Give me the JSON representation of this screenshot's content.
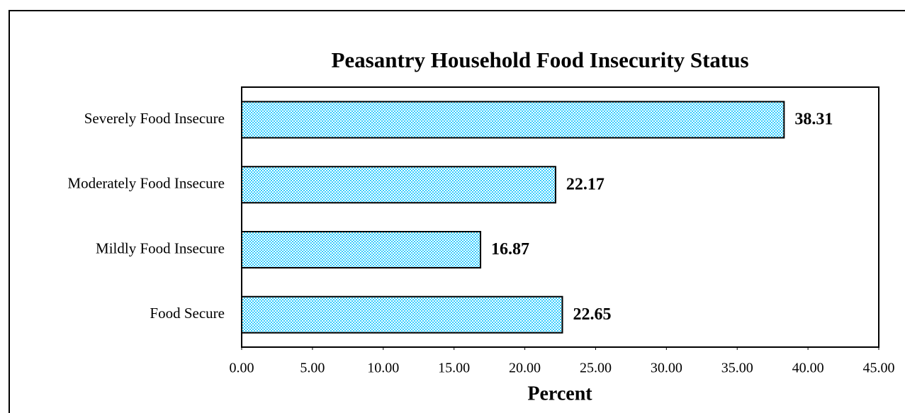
{
  "chart_data": {
    "type": "bar",
    "orientation": "horizontal",
    "title": "Peasantry Household Food Insecurity Status",
    "x_label": "Percent",
    "categories": [
      "Severely Food Insecure",
      "Moderately Food Insecure",
      "Mildly Food Insecure",
      "Food Secure"
    ],
    "values": [
      38.31,
      22.17,
      16.87,
      22.65
    ],
    "color": "#33ccff",
    "xlim": [
      0,
      45
    ],
    "xticks": [
      {
        "value": 0,
        "label": "0.00"
      },
      {
        "value": 5,
        "label": "5.00"
      },
      {
        "value": 10,
        "label": "10.00"
      },
      {
        "value": 15,
        "label": "15.00"
      },
      {
        "value": 20,
        "label": "20.00"
      },
      {
        "value": 25,
        "label": "25.00"
      },
      {
        "value": 30,
        "label": "30.00"
      },
      {
        "value": 35,
        "label": "35.00"
      },
      {
        "value": 40,
        "label": "40.00"
      },
      {
        "value": 45,
        "label": "45.00"
      }
    ],
    "grid": false
  }
}
